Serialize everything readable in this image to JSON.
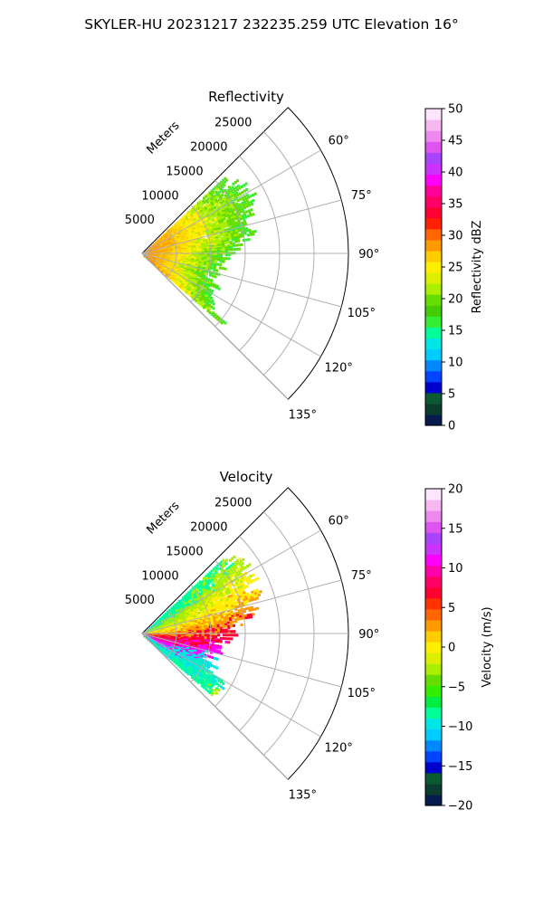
{
  "suptitle": "SKYLER-HU  20231217  232235.259 UTC Elevation 16°",
  "chart_data": [
    {
      "type": "heatmap",
      "projection": "polar-sector",
      "title": "Reflectivity",
      "radial_label": "Meters",
      "radial_ticks": [
        "5000",
        "10000",
        "15000",
        "20000",
        "25000"
      ],
      "radial_values": [
        5000,
        10000,
        15000,
        20000,
        25000
      ],
      "radial_max": 30000,
      "azimuth_ticks": [
        "60°",
        "75°",
        "90°",
        "105°",
        "120°",
        "135°"
      ],
      "azimuth_values": [
        60,
        75,
        90,
        105,
        120,
        135
      ],
      "azimuth_range": [
        45,
        135
      ],
      "grid": true,
      "colorbar": {
        "label": "Reflectivity dBZ",
        "ticks": [
          "0",
          "5",
          "10",
          "15",
          "20",
          "25",
          "30",
          "35",
          "40",
          "45",
          "50"
        ],
        "range": [
          0,
          50
        ],
        "colors": [
          "#051a4d",
          "#0b3d2e",
          "#0a5a32",
          "#0000cc",
          "#0044ff",
          "#0088ff",
          "#00ccff",
          "#00e5e5",
          "#00ff99",
          "#33ee33",
          "#44cc00",
          "#66dd00",
          "#aaee00",
          "#ddee00",
          "#ffee00",
          "#ffcc00",
          "#ff9900",
          "#ff6600",
          "#ff2200",
          "#ff0033",
          "#ff0066",
          "#ff0099",
          "#ff00ff",
          "#cc33ff",
          "#aa44ff",
          "#dd55ee",
          "#ee88ee",
          "#f7b7f0",
          "#fde6fb"
        ]
      },
      "data_description_colors": [
        "#33ee33",
        "#66dd00",
        "#aaee00",
        "#ffee00",
        "#ffcc00",
        "#ff9900"
      ]
    },
    {
      "type": "heatmap",
      "projection": "polar-sector",
      "title": "Velocity",
      "radial_label": "Meters",
      "radial_ticks": [
        "5000",
        "10000",
        "15000",
        "20000",
        "25000"
      ],
      "radial_values": [
        5000,
        10000,
        15000,
        20000,
        25000
      ],
      "radial_max": 30000,
      "azimuth_ticks": [
        "60°",
        "75°",
        "90°",
        "105°",
        "120°",
        "135°"
      ],
      "azimuth_values": [
        60,
        75,
        90,
        105,
        120,
        135
      ],
      "azimuth_range": [
        45,
        135
      ],
      "grid": true,
      "colorbar": {
        "label": "Velocity (m/s)",
        "ticks": [
          "−20",
          "−15",
          "−10",
          "−5",
          "0",
          "5",
          "10",
          "15",
          "20"
        ],
        "range": [
          -20,
          20
        ],
        "colors": [
          "#051a4d",
          "#0b3d2e",
          "#0a5a32",
          "#0000cc",
          "#0044ff",
          "#0088ff",
          "#00ccff",
          "#00e5e5",
          "#00ff99",
          "#00ee44",
          "#33ee00",
          "#66dd00",
          "#aaee00",
          "#ddee00",
          "#ffee00",
          "#ffcc00",
          "#ff9900",
          "#ff6600",
          "#ff3300",
          "#ff0033",
          "#ff0066",
          "#ff00aa",
          "#ff00ff",
          "#cc33ff",
          "#aa44ff",
          "#dd55ee",
          "#ee88ee",
          "#f7b7f0",
          "#fde6fb"
        ]
      },
      "data_description_colors": [
        "#00e5e5",
        "#00ff99",
        "#aaee00",
        "#ffee00",
        "#ff9900",
        "#ff0033",
        "#ff00ff"
      ]
    }
  ]
}
